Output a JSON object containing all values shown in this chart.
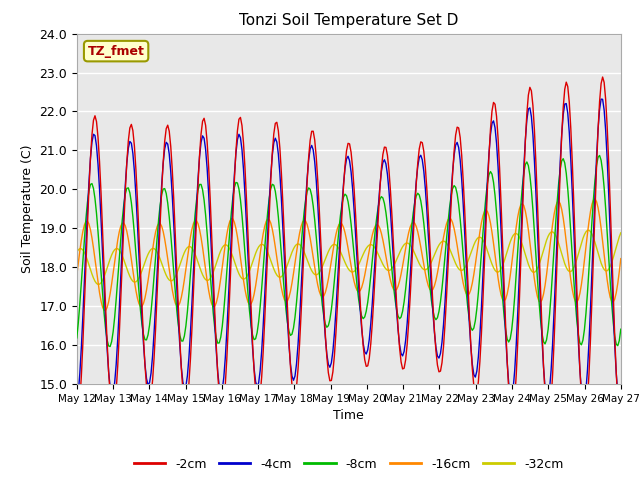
{
  "title": "Tonzi Soil Temperature Set D",
  "xlabel": "Time",
  "ylabel": "Soil Temperature (C)",
  "ylim": [
    15.0,
    24.0
  ],
  "yticks": [
    15.0,
    16.0,
    17.0,
    18.0,
    19.0,
    20.0,
    21.0,
    22.0,
    23.0,
    24.0
  ],
  "xtick_labels": [
    "May 12",
    "May 13",
    "May 14",
    "May 15",
    "May 16",
    "May 17",
    "May 18",
    "May 19",
    "May 20",
    "May 21",
    "May 22",
    "May 23",
    "May 24",
    "May 25",
    "May 26",
    "May 27"
  ],
  "legend_entries": [
    "-2cm",
    "-4cm",
    "-8cm",
    "-16cm",
    "-32cm"
  ],
  "line_colors": [
    "#dd0000",
    "#0000cc",
    "#00bb00",
    "#ff8800",
    "#cccc00"
  ],
  "annotation_text": "TZ_fmet",
  "annotation_color": "#aa0000",
  "annotation_bg": "#ffffcc",
  "background_color": "#e8e8e8",
  "figsize": [
    6.4,
    4.8
  ],
  "dpi": 100
}
